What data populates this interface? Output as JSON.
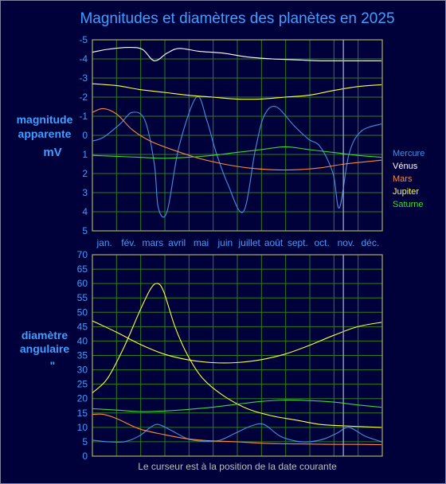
{
  "title": "Magnitudes et diamètres des planètes en 2025",
  "footer": "Le curseur est à la position de la date courante",
  "colors": {
    "background": "#00003a",
    "grid": "#2e7d1e",
    "frame": "#a8b060",
    "cursor": "#9fa8c8",
    "text": "#3fa0ff"
  },
  "chart_data": [
    {
      "type": "line",
      "ylabel": [
        "magnitude",
        "apparente",
        "mV"
      ],
      "ylim": [
        -5,
        5
      ],
      "y_inverted": true,
      "y_ticks": [
        "-5",
        "-4",
        "-3",
        "-2",
        "-1",
        "0",
        "1",
        "2",
        "3",
        "4",
        "5"
      ],
      "month_labels": [
        "jan.",
        "fév.",
        "mars",
        "avril",
        "mai",
        "juin",
        "juillet",
        "août",
        "sept.",
        "oct.",
        "nov.",
        "déc."
      ],
      "cursor_date": "2025-11-13",
      "x_unit": "date (2025)",
      "series": [
        {
          "name": "Mercure",
          "color": "#4a90e0",
          "x": [
            "2025-01-01",
            "2025-01-15",
            "2025-02-05",
            "2025-02-20",
            "2025-03-08",
            "2025-03-20",
            "2025-03-25",
            "2025-04-05",
            "2025-04-20",
            "2025-05-12",
            "2025-05-25",
            "2025-06-05",
            "2025-06-20",
            "2025-07-10",
            "2025-07-25",
            "2025-08-05",
            "2025-08-20",
            "2025-09-12",
            "2025-09-30",
            "2025-10-15",
            "2025-10-31",
            "2025-11-08",
            "2025-11-20",
            "2025-12-05",
            "2025-12-31"
          ],
          "y": [
            0.3,
            0.1,
            -0.6,
            -1.2,
            -0.8,
            1.5,
            3.8,
            4.0,
            0.6,
            -2.0,
            -0.8,
            0.8,
            2.5,
            4.0,
            0.8,
            -1.0,
            -1.5,
            -0.5,
            0.2,
            0.6,
            2.0,
            3.8,
            1.0,
            -0.2,
            -0.6
          ]
        },
        {
          "name": "Vénus",
          "color": "#ffffff",
          "x": [
            "2025-01-01",
            "2025-01-20",
            "2025-02-15",
            "2025-03-05",
            "2025-03-20",
            "2025-04-05",
            "2025-04-20",
            "2025-05-15",
            "2025-06-15",
            "2025-07-15",
            "2025-08-15",
            "2025-09-15",
            "2025-10-15",
            "2025-11-15",
            "2025-12-31"
          ],
          "y": [
            -4.35,
            -4.5,
            -4.6,
            -4.5,
            -3.9,
            -4.3,
            -4.55,
            -4.4,
            -4.3,
            -4.1,
            -4.0,
            -3.95,
            -3.9,
            -3.9,
            -3.9
          ]
        },
        {
          "name": "Mars",
          "color": "#ff8a3c",
          "x": [
            "2025-01-01",
            "2025-01-15",
            "2025-02-01",
            "2025-02-20",
            "2025-03-15",
            "2025-04-15",
            "2025-05-15",
            "2025-06-15",
            "2025-07-15",
            "2025-08-15",
            "2025-09-15",
            "2025-10-15",
            "2025-11-15",
            "2025-12-31"
          ],
          "y": [
            -1.2,
            -1.4,
            -1.1,
            -0.3,
            0.3,
            0.8,
            1.2,
            1.5,
            1.7,
            1.8,
            1.8,
            1.7,
            1.5,
            1.3
          ]
        },
        {
          "name": "Jupiter",
          "color": "#ffff3c",
          "x": [
            "2025-01-01",
            "2025-02-01",
            "2025-03-01",
            "2025-04-01",
            "2025-05-01",
            "2025-06-01",
            "2025-07-01",
            "2025-08-01",
            "2025-09-01",
            "2025-10-01",
            "2025-11-01",
            "2025-12-01",
            "2025-12-31"
          ],
          "y": [
            -2.7,
            -2.6,
            -2.4,
            -2.25,
            -2.1,
            -2.0,
            -1.9,
            -1.9,
            -2.0,
            -2.1,
            -2.35,
            -2.55,
            -2.65
          ]
        },
        {
          "name": "Saturne",
          "color": "#3cd83c",
          "x": [
            "2025-01-01",
            "2025-02-01",
            "2025-03-01",
            "2025-04-01",
            "2025-05-01",
            "2025-06-01",
            "2025-07-01",
            "2025-08-01",
            "2025-09-01",
            "2025-10-01",
            "2025-11-01",
            "2025-12-01",
            "2025-12-31"
          ],
          "y": [
            1.05,
            1.1,
            1.15,
            1.2,
            1.15,
            1.05,
            0.9,
            0.75,
            0.6,
            0.75,
            0.9,
            1.05,
            1.15
          ]
        }
      ]
    },
    {
      "type": "line",
      "ylabel": [
        "diamètre",
        "angulaire",
        "\""
      ],
      "ylim": [
        0,
        70
      ],
      "y_ticks": [
        "0",
        "5",
        "10",
        "15",
        "20",
        "25",
        "30",
        "35",
        "40",
        "45",
        "50",
        "55",
        "60",
        "65",
        "70"
      ],
      "cursor_date": "2025-11-13",
      "x_unit": "date (2025)",
      "series": [
        {
          "name": "Mercure",
          "color": "#4a90e0",
          "x": [
            "2025-01-01",
            "2025-01-20",
            "2025-02-10",
            "2025-03-01",
            "2025-03-15",
            "2025-03-25",
            "2025-04-10",
            "2025-05-01",
            "2025-05-20",
            "2025-06-10",
            "2025-06-30",
            "2025-07-20",
            "2025-08-05",
            "2025-08-25",
            "2025-09-15",
            "2025-10-01",
            "2025-10-20",
            "2025-11-05",
            "2025-11-20",
            "2025-12-10",
            "2025-12-31"
          ],
          "y": [
            5.6,
            5.0,
            5.0,
            7.0,
            10.0,
            11.0,
            9.0,
            6.0,
            5.2,
            5.5,
            8.0,
            10.5,
            11.0,
            7.0,
            5.2,
            5.0,
            6.0,
            8.0,
            10.0,
            7.0,
            5.0
          ]
        },
        {
          "name": "Vénus",
          "color": "#ffff3c",
          "x": [
            "2025-01-01",
            "2025-01-20",
            "2025-02-10",
            "2025-03-01",
            "2025-03-15",
            "2025-03-24",
            "2025-04-01",
            "2025-04-15",
            "2025-05-01",
            "2025-05-20",
            "2025-06-15",
            "2025-07-15",
            "2025-08-15",
            "2025-09-15",
            "2025-10-15",
            "2025-11-15",
            "2025-12-31"
          ],
          "y": [
            22.0,
            27.0,
            38.0,
            50.0,
            58.0,
            60.0,
            57.0,
            45.0,
            35.0,
            27.0,
            21.0,
            16.5,
            14.0,
            12.5,
            11.0,
            10.5,
            10.0
          ]
        },
        {
          "name": "Mars",
          "color": "#ff8a3c",
          "x": [
            "2025-01-01",
            "2025-01-15",
            "2025-02-01",
            "2025-03-01",
            "2025-04-01",
            "2025-05-01",
            "2025-06-01",
            "2025-07-01",
            "2025-08-01",
            "2025-09-01",
            "2025-10-01",
            "2025-11-01",
            "2025-12-01",
            "2025-12-31"
          ],
          "y": [
            14.5,
            14.5,
            13.0,
            9.5,
            7.5,
            6.0,
            5.3,
            5.0,
            4.5,
            4.3,
            4.2,
            4.1,
            4.1,
            4.0
          ]
        },
        {
          "name": "Jupiter",
          "color": "#ffff3c",
          "x": [
            "2025-01-01",
            "2025-02-01",
            "2025-03-01",
            "2025-04-01",
            "2025-05-01",
            "2025-06-01",
            "2025-07-01",
            "2025-08-01",
            "2025-09-01",
            "2025-10-01",
            "2025-11-01",
            "2025-12-01",
            "2025-12-31"
          ],
          "y": [
            47.0,
            43.0,
            39.0,
            35.5,
            33.5,
            32.5,
            32.5,
            33.5,
            35.5,
            38.5,
            42.0,
            45.0,
            46.5
          ]
        },
        {
          "name": "Saturne",
          "color": "#3cd83c",
          "x": [
            "2025-01-01",
            "2025-02-01",
            "2025-03-01",
            "2025-04-01",
            "2025-05-01",
            "2025-06-01",
            "2025-07-01",
            "2025-08-01",
            "2025-09-01",
            "2025-10-01",
            "2025-11-01",
            "2025-12-01",
            "2025-12-31"
          ],
          "y": [
            16.5,
            16.0,
            15.5,
            15.7,
            16.2,
            17.0,
            18.0,
            19.0,
            19.5,
            19.3,
            18.8,
            17.8,
            17.0
          ]
        }
      ]
    }
  ]
}
